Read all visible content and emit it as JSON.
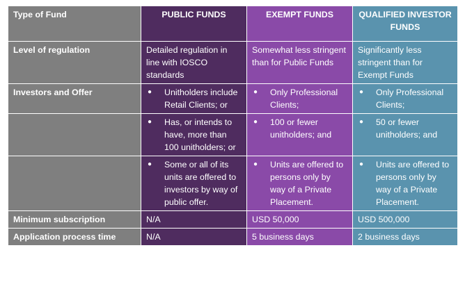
{
  "colors": {
    "label_col": "#7f7f7f",
    "public_col": "#4f2c5f",
    "exempt_col": "#8a4aa8",
    "qualified_col": "#5a93ae"
  },
  "header": {
    "type_of_fund": "Type of Fund",
    "public": "PUBLIC FUNDS",
    "exempt": "EXEMPT FUNDS",
    "qualified": "QUALIFIED INVESTOR FUNDS"
  },
  "rows": {
    "regulation": {
      "label": "Level of regulation",
      "public": "Detailed regulation in line with IOSCO standards",
      "exempt": "Somewhat less stringent than for Public Funds",
      "qualified": "Significantly less stringent than for Exempt Funds"
    },
    "investors": {
      "label": "Investors and Offer",
      "public": [
        "Unitholders include Retail Clients; or",
        "Has, or intends to have, more than 100 unitholders; or",
        "Some or all of its units are offered to investors by way of public offer."
      ],
      "exempt": [
        "Only Professional Clients;",
        "100 or fewer unitholders; and",
        "Units are offered to persons   only by way of a Private Placement."
      ],
      "qualified": [
        "Only Professional Clients;",
        "50 or fewer unitholders; and",
        "Units are offered to persons   only by way of a Private Placement."
      ]
    },
    "min_subscription": {
      "label": "Minimum subscription",
      "public": "N/A",
      "exempt": "USD 50,000",
      "qualified": "USD 500,000"
    },
    "process_time": {
      "label": "Application process time",
      "public": "N/A",
      "exempt": "5 business days",
      "qualified": "2 business days"
    }
  }
}
